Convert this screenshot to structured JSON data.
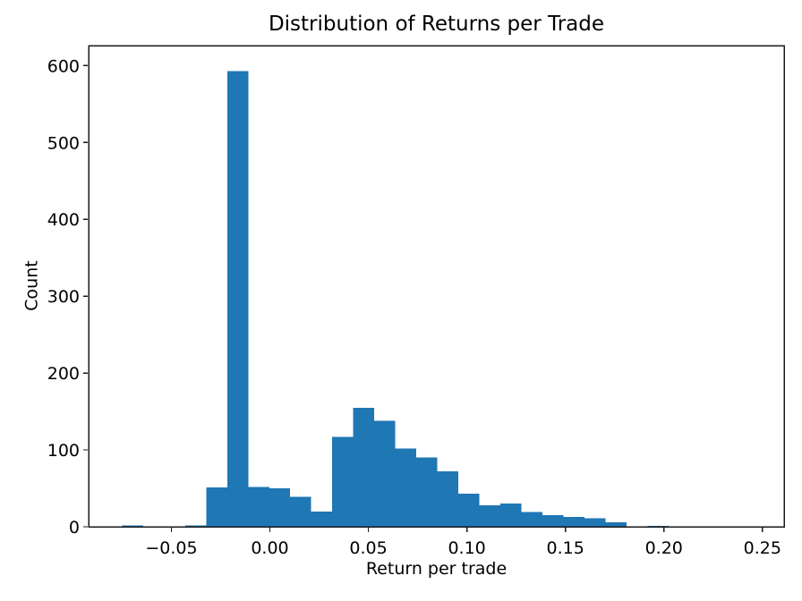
{
  "chart_data": {
    "type": "bar",
    "subtype": "histogram",
    "title": "Distribution of Returns per Trade",
    "xlabel": "Return per trade",
    "ylabel": "Count",
    "bin_start": -0.075,
    "bin_end": 0.245,
    "n_bins": 30,
    "counts": [
      2,
      0,
      0,
      2,
      51,
      593,
      52,
      50,
      39,
      20,
      117,
      155,
      138,
      102,
      90,
      72,
      43,
      28,
      30,
      19,
      15,
      13,
      11,
      6,
      0,
      1,
      0,
      0,
      0,
      0
    ],
    "xlim": [
      -0.092,
      0.261
    ],
    "ylim": [
      0,
      626
    ],
    "xticks": [
      -0.05,
      0.0,
      0.05,
      0.1,
      0.15,
      0.2,
      0.25
    ],
    "xtick_labels": [
      "−0.05",
      "0.00",
      "0.05",
      "0.10",
      "0.15",
      "0.20",
      "0.25"
    ],
    "yticks": [
      0,
      100,
      200,
      300,
      400,
      500,
      600
    ],
    "ytick_labels": [
      "0",
      "100",
      "200",
      "300",
      "400",
      "500",
      "600"
    ],
    "grid": false,
    "legend_position": "none",
    "bar_color": "#1f77b4",
    "axis_color": "#1a1a1a",
    "text_color": "#000000",
    "background": "#ffffff"
  }
}
